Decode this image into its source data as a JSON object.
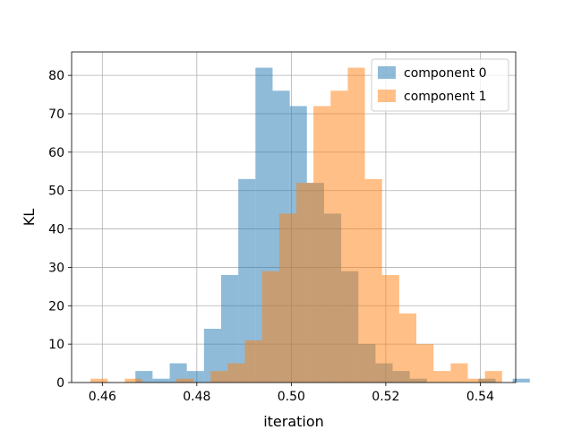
{
  "chart_data": {
    "type": "bar",
    "subtype": "histogram",
    "title": "",
    "xlabel": "iteration",
    "ylabel": "KL",
    "xlim": [
      0.4535,
      0.5475
    ],
    "ylim": [
      0,
      86.1
    ],
    "xticks": [
      0.46,
      0.48,
      0.5,
      0.52,
      0.54
    ],
    "xtick_labels": [
      "0.46",
      "0.48",
      "0.50",
      "0.52",
      "0.54"
    ],
    "yticks": [
      0,
      10,
      20,
      30,
      40,
      50,
      60,
      70,
      80
    ],
    "ytick_labels": [
      "0",
      "10",
      "20",
      "30",
      "40",
      "50",
      "60",
      "70",
      "80"
    ],
    "grid": true,
    "legend_position": "top-right",
    "series": [
      {
        "name": "component 0",
        "color": "#1f77b4",
        "alpha": 0.5,
        "bin_start": 0.467,
        "bin_width": 0.00363,
        "counts": [
          3,
          1,
          5,
          3,
          14,
          28,
          53,
          82,
          76,
          72,
          52,
          44,
          29,
          10,
          5,
          3,
          1,
          0,
          0,
          0,
          1,
          0,
          1
        ]
      },
      {
        "name": "component 1",
        "color": "#ff7f0e",
        "alpha": 0.5,
        "bin_start": 0.4575,
        "bin_width": 0.00363,
        "counts": [
          1,
          0,
          1,
          0,
          0,
          1,
          0,
          3,
          5,
          11,
          29,
          44,
          52,
          72,
          76,
          82,
          53,
          28,
          18,
          10,
          3,
          5,
          1,
          3
        ]
      }
    ]
  }
}
